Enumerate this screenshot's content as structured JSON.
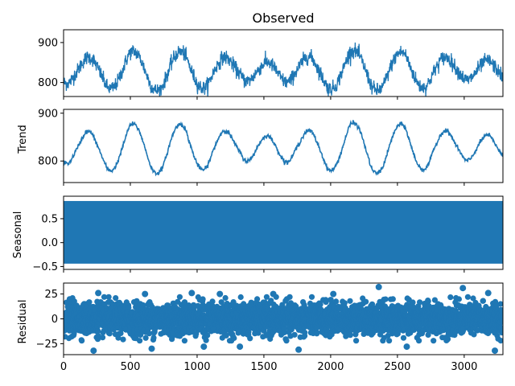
{
  "chart_data": [
    {
      "type": "line",
      "panel": "observed",
      "title": "Observed",
      "ylabel": "",
      "xlim": [
        0,
        3290
      ],
      "ylim": [
        765,
        932
      ],
      "yticks": [
        800,
        900
      ],
      "ytick_labels": [
        "800",
        "900"
      ],
      "color": "#1f77b4",
      "period": 330,
      "phase_offset": 120,
      "mean": 832,
      "amplitude": 52,
      "noise_sd": 12,
      "x": [
        0,
        82,
        165,
        247,
        330,
        412,
        495,
        577,
        660,
        742,
        825,
        907,
        990,
        1072,
        1155,
        1237,
        1320,
        1402,
        1485,
        1567,
        1650,
        1732,
        1815,
        1897,
        1980,
        2062,
        2145,
        2227,
        2310,
        2392,
        2475,
        2557,
        2640,
        2722,
        2805,
        2887,
        2970,
        3052,
        3135,
        3217,
        3290
      ],
      "y": [
        820,
        870,
        832,
        785,
        775,
        830,
        881,
        838,
        780,
        778,
        835,
        883,
        832,
        775,
        785,
        838,
        892,
        832,
        771,
        780,
        829,
        886,
        843,
        777,
        773,
        832,
        887,
        843,
        782,
        775,
        826,
        883,
        835,
        782,
        786,
        838,
        896,
        842,
        785,
        790,
        845
      ]
    },
    {
      "type": "line",
      "panel": "trend",
      "ylabel": "Trend",
      "xlim": [
        0,
        3290
      ],
      "ylim": [
        755,
        908
      ],
      "yticks": [
        800,
        900
      ],
      "ytick_labels": [
        "800",
        "900"
      ],
      "color": "#1f77b4",
      "period": 330,
      "phase_offset": 120,
      "mean": 830,
      "amplitude": 55,
      "x": [
        0,
        82,
        165,
        247,
        330,
        412,
        495,
        577,
        660,
        742,
        825,
        907,
        990,
        1072,
        1155,
        1237,
        1320,
        1402,
        1485,
        1567,
        1650,
        1732,
        1815,
        1897,
        1980,
        2062,
        2145,
        2227,
        2310,
        2392,
        2475,
        2557,
        2640,
        2722,
        2805,
        2887,
        2970,
        3052,
        3135,
        3217,
        3290
      ],
      "y": [
        825,
        870,
        832,
        765,
        770,
        828,
        878,
        830,
        775,
        772,
        834,
        878,
        830,
        772,
        780,
        840,
        893,
        830,
        778,
        780,
        830,
        888,
        835,
        775,
        770,
        833,
        885,
        838,
        770,
        778,
        830,
        880,
        830,
        775,
        778,
        840,
        893,
        836,
        782,
        785,
        840
      ]
    },
    {
      "type": "line",
      "panel": "seasonal",
      "ylabel": "Seasonal",
      "xlim": [
        0,
        3290
      ],
      "ylim": [
        -0.56,
        0.97
      ],
      "yticks": [
        -0.5,
        0.0,
        0.5
      ],
      "ytick_labels": [
        "−0.5",
        "0.0",
        "0.5"
      ],
      "color": "#1f77b4",
      "band": [
        -0.44,
        0.87
      ]
    },
    {
      "type": "scatter",
      "panel": "residual",
      "ylabel": "Residual",
      "xlim": [
        0,
        3290
      ],
      "ylim": [
        -36,
        36
      ],
      "yticks": [
        -25,
        0,
        25
      ],
      "ytick_labels": [
        "−25",
        "0",
        "25"
      ],
      "xticks": [
        0,
        500,
        1000,
        1500,
        2000,
        2500,
        3000
      ],
      "xtick_labels": [
        "0",
        "500",
        "1000",
        "1500",
        "2000",
        "2500",
        "3000"
      ],
      "color": "#1f77b4",
      "noise_sd": 8,
      "outliers": [
        {
          "x": 225,
          "y": -32
        },
        {
          "x": 260,
          "y": 26
        },
        {
          "x": 610,
          "y": 25
        },
        {
          "x": 660,
          "y": -30
        },
        {
          "x": 960,
          "y": 26
        },
        {
          "x": 1050,
          "y": -28
        },
        {
          "x": 1170,
          "y": 25
        },
        {
          "x": 1320,
          "y": -28
        },
        {
          "x": 1570,
          "y": 25
        },
        {
          "x": 1760,
          "y": -31
        },
        {
          "x": 2020,
          "y": 25
        },
        {
          "x": 2360,
          "y": 32
        },
        {
          "x": 2570,
          "y": -28
        },
        {
          "x": 2990,
          "y": 31
        },
        {
          "x": 3230,
          "y": -32
        },
        {
          "x": 3180,
          "y": 26
        }
      ]
    }
  ]
}
